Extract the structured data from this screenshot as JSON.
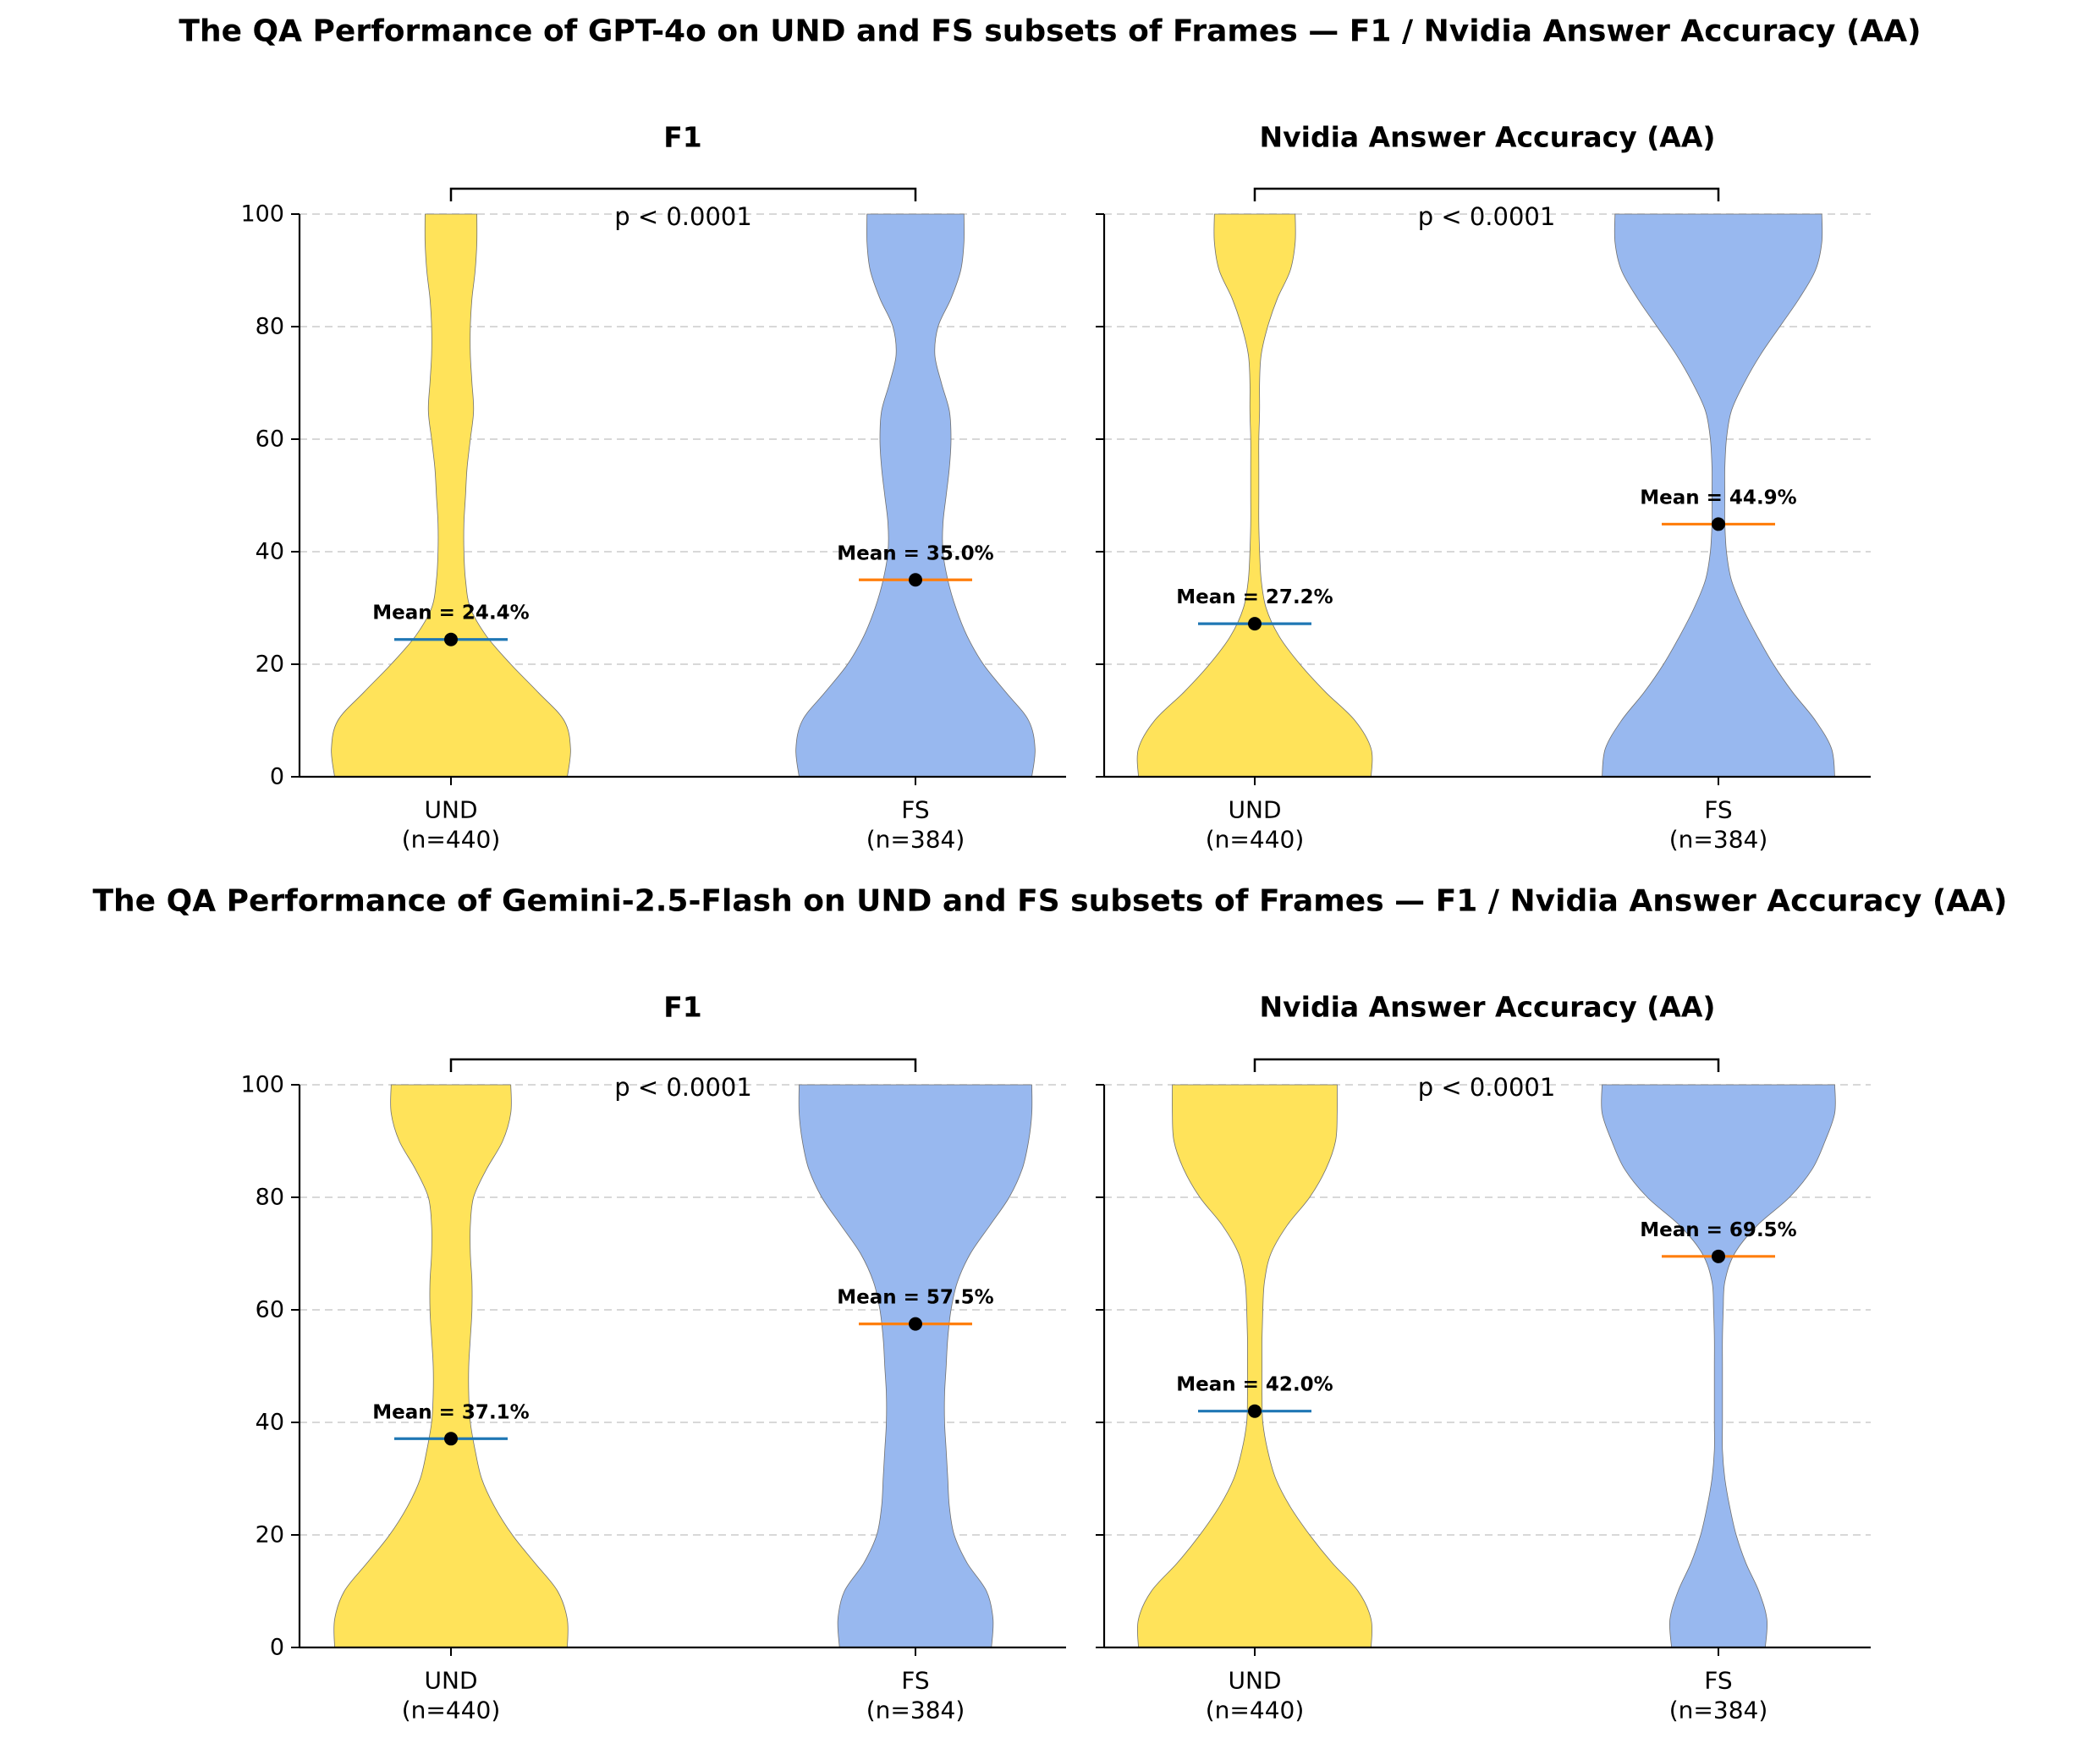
{
  "colors": {
    "und_violin": "#ffe35a",
    "fs_violin": "#98b8ef",
    "und_mean_line": "#1f77b4",
    "fs_mean_line": "#ff7f0e",
    "mean_point": "#000000"
  },
  "chart_data": [
    {
      "figure_title": "The QA Performance of GPT-4o on UND and FS subsets of Frames — F1 / Nvidia Answer Accuracy (AA)",
      "panels": [
        {
          "type": "violin",
          "title": "F1",
          "ylim": [
            0,
            100
          ],
          "yticks": [
            0,
            20,
            40,
            60,
            80,
            100
          ],
          "grid": true,
          "pvalue": "p < 0.0001",
          "groups": [
            {
              "name": "UND",
              "n_label": "(n=440)",
              "mean": 24.4,
              "mean_label": "Mean = 24.4%",
              "density": [
                [
                  0,
                  0.72
                ],
                [
                  5,
                  0.74
                ],
                [
                  10,
                  0.7
                ],
                [
                  15,
                  0.54
                ],
                [
                  20,
                  0.37
                ],
                [
                  25,
                  0.22
                ],
                [
                  30,
                  0.12
                ],
                [
                  35,
                  0.09
                ],
                [
                  40,
                  0.08
                ],
                [
                  45,
                  0.08
                ],
                [
                  50,
                  0.09
                ],
                [
                  55,
                  0.1
                ],
                [
                  60,
                  0.12
                ],
                [
                  65,
                  0.14
                ],
                [
                  70,
                  0.13
                ],
                [
                  75,
                  0.12
                ],
                [
                  80,
                  0.12
                ],
                [
                  85,
                  0.13
                ],
                [
                  90,
                  0.15
                ],
                [
                  95,
                  0.16
                ],
                [
                  100,
                  0.16
                ]
              ]
            },
            {
              "name": "FS",
              "n_label": "(n=384)",
              "mean": 35.0,
              "mean_label": "Mean = 35.0%",
              "density": [
                [
                  0,
                  0.72
                ],
                [
                  5,
                  0.74
                ],
                [
                  10,
                  0.7
                ],
                [
                  15,
                  0.56
                ],
                [
                  20,
                  0.42
                ],
                [
                  25,
                  0.32
                ],
                [
                  30,
                  0.25
                ],
                [
                  35,
                  0.2
                ],
                [
                  40,
                  0.17
                ],
                [
                  45,
                  0.17
                ],
                [
                  50,
                  0.19
                ],
                [
                  55,
                  0.21
                ],
                [
                  60,
                  0.22
                ],
                [
                  65,
                  0.21
                ],
                [
                  70,
                  0.16
                ],
                [
                  75,
                  0.12
                ],
                [
                  80,
                  0.14
                ],
                [
                  85,
                  0.22
                ],
                [
                  90,
                  0.28
                ],
                [
                  95,
                  0.3
                ],
                [
                  100,
                  0.3
                ]
              ]
            }
          ]
        },
        {
          "type": "violin",
          "title": "Nvidia Answer Accuracy (AA)",
          "ylim": [
            0,
            100
          ],
          "yticks": [
            0,
            20,
            40,
            60,
            80,
            100
          ],
          "grid": true,
          "pvalue": "p < 0.0001",
          "groups": [
            {
              "name": "UND",
              "n_label": "(n=440)",
              "mean": 27.2,
              "mean_label": "Mean = 27.2%",
              "density": [
                [
                  0,
                  0.72
                ],
                [
                  5,
                  0.72
                ],
                [
                  10,
                  0.62
                ],
                [
                  15,
                  0.44
                ],
                [
                  20,
                  0.28
                ],
                [
                  25,
                  0.15
                ],
                [
                  30,
                  0.07
                ],
                [
                  35,
                  0.04
                ],
                [
                  40,
                  0.03
                ],
                [
                  45,
                  0.025
                ],
                [
                  50,
                  0.025
                ],
                [
                  55,
                  0.025
                ],
                [
                  60,
                  0.025
                ],
                [
                  65,
                  0.03
                ],
                [
                  70,
                  0.03
                ],
                [
                  75,
                  0.04
                ],
                [
                  80,
                  0.08
                ],
                [
                  85,
                  0.14
                ],
                [
                  90,
                  0.22
                ],
                [
                  95,
                  0.25
                ],
                [
                  100,
                  0.25
                ]
              ]
            },
            {
              "name": "FS",
              "n_label": "(n=384)",
              "mean": 44.9,
              "mean_label": "Mean = 44.9%",
              "density": [
                [
                  0,
                  0.72
                ],
                [
                  5,
                  0.7
                ],
                [
                  10,
                  0.6
                ],
                [
                  15,
                  0.46
                ],
                [
                  20,
                  0.34
                ],
                [
                  25,
                  0.24
                ],
                [
                  30,
                  0.15
                ],
                [
                  35,
                  0.08
                ],
                [
                  40,
                  0.05
                ],
                [
                  45,
                  0.04
                ],
                [
                  50,
                  0.04
                ],
                [
                  55,
                  0.04
                ],
                [
                  60,
                  0.05
                ],
                [
                  65,
                  0.08
                ],
                [
                  70,
                  0.16
                ],
                [
                  75,
                  0.26
                ],
                [
                  80,
                  0.38
                ],
                [
                  85,
                  0.5
                ],
                [
                  90,
                  0.6
                ],
                [
                  95,
                  0.64
                ],
                [
                  100,
                  0.64
                ]
              ]
            }
          ]
        }
      ]
    },
    {
      "figure_title": "The QA Performance of Gemini-2.5-Flash on UND and FS subsets of Frames — F1 / Nvidia Answer Accuracy (AA)",
      "panels": [
        {
          "type": "violin",
          "title": "F1",
          "ylim": [
            0,
            100
          ],
          "yticks": [
            0,
            20,
            40,
            60,
            80,
            100
          ],
          "grid": true,
          "pvalue": "p < 0.0001",
          "groups": [
            {
              "name": "UND",
              "n_label": "(n=440)",
              "mean": 37.1,
              "mean_label": "Mean = 37.1%",
              "density": [
                [
                  0,
                  0.72
                ],
                [
                  5,
                  0.72
                ],
                [
                  10,
                  0.66
                ],
                [
                  15,
                  0.52
                ],
                [
                  20,
                  0.38
                ],
                [
                  25,
                  0.27
                ],
                [
                  30,
                  0.19
                ],
                [
                  35,
                  0.15
                ],
                [
                  40,
                  0.12
                ],
                [
                  45,
                  0.11
                ],
                [
                  50,
                  0.11
                ],
                [
                  55,
                  0.12
                ],
                [
                  60,
                  0.13
                ],
                [
                  65,
                  0.13
                ],
                [
                  70,
                  0.12
                ],
                [
                  75,
                  0.12
                ],
                [
                  80,
                  0.14
                ],
                [
                  85,
                  0.22
                ],
                [
                  90,
                  0.32
                ],
                [
                  95,
                  0.37
                ],
                [
                  100,
                  0.37
                ]
              ]
            },
            {
              "name": "FS",
              "n_label": "(n=384)",
              "mean": 57.5,
              "mean_label": "Mean = 57.5%",
              "density": [
                [
                  0,
                  0.47
                ],
                [
                  5,
                  0.48
                ],
                [
                  10,
                  0.44
                ],
                [
                  15,
                  0.32
                ],
                [
                  20,
                  0.24
                ],
                [
                  25,
                  0.21
                ],
                [
                  30,
                  0.2
                ],
                [
                  35,
                  0.19
                ],
                [
                  40,
                  0.18
                ],
                [
                  45,
                  0.18
                ],
                [
                  50,
                  0.19
                ],
                [
                  55,
                  0.2
                ],
                [
                  60,
                  0.22
                ],
                [
                  65,
                  0.26
                ],
                [
                  70,
                  0.34
                ],
                [
                  75,
                  0.46
                ],
                [
                  80,
                  0.58
                ],
                [
                  85,
                  0.66
                ],
                [
                  90,
                  0.7
                ],
                [
                  95,
                  0.72
                ],
                [
                  100,
                  0.72
                ]
              ]
            }
          ]
        },
        {
          "type": "violin",
          "title": "Nvidia Answer Accuracy (AA)",
          "ylim": [
            0,
            100
          ],
          "yticks": [
            0,
            20,
            40,
            60,
            80,
            100
          ],
          "grid": true,
          "pvalue": "p < 0.0001",
          "groups": [
            {
              "name": "UND",
              "n_label": "(n=440)",
              "mean": 42.0,
              "mean_label": "Mean = 42.0%",
              "density": [
                [
                  0,
                  0.72
                ],
                [
                  5,
                  0.72
                ],
                [
                  10,
                  0.64
                ],
                [
                  15,
                  0.48
                ],
                [
                  20,
                  0.34
                ],
                [
                  25,
                  0.22
                ],
                [
                  30,
                  0.13
                ],
                [
                  35,
                  0.08
                ],
                [
                  40,
                  0.05
                ],
                [
                  45,
                  0.045
                ],
                [
                  50,
                  0.045
                ],
                [
                  55,
                  0.045
                ],
                [
                  60,
                  0.05
                ],
                [
                  65,
                  0.06
                ],
                [
                  70,
                  0.1
                ],
                [
                  75,
                  0.2
                ],
                [
                  80,
                  0.34
                ],
                [
                  85,
                  0.44
                ],
                [
                  90,
                  0.5
                ],
                [
                  95,
                  0.51
                ],
                [
                  100,
                  0.51
                ]
              ]
            },
            {
              "name": "FS",
              "n_label": "(n=384)",
              "mean": 69.5,
              "mean_label": "Mean = 69.5%",
              "density": [
                [
                  0,
                  0.29
                ],
                [
                  5,
                  0.3
                ],
                [
                  10,
                  0.25
                ],
                [
                  15,
                  0.17
                ],
                [
                  20,
                  0.11
                ],
                [
                  25,
                  0.07
                ],
                [
                  30,
                  0.04
                ],
                [
                  35,
                  0.025
                ],
                [
                  40,
                  0.025
                ],
                [
                  45,
                  0.025
                ],
                [
                  50,
                  0.025
                ],
                [
                  55,
                  0.025
                ],
                [
                  60,
                  0.03
                ],
                [
                  65,
                  0.04
                ],
                [
                  70,
                  0.1
                ],
                [
                  75,
                  0.24
                ],
                [
                  80,
                  0.44
                ],
                [
                  85,
                  0.58
                ],
                [
                  90,
                  0.66
                ],
                [
                  95,
                  0.72
                ],
                [
                  100,
                  0.72
                ]
              ]
            }
          ]
        }
      ]
    }
  ]
}
